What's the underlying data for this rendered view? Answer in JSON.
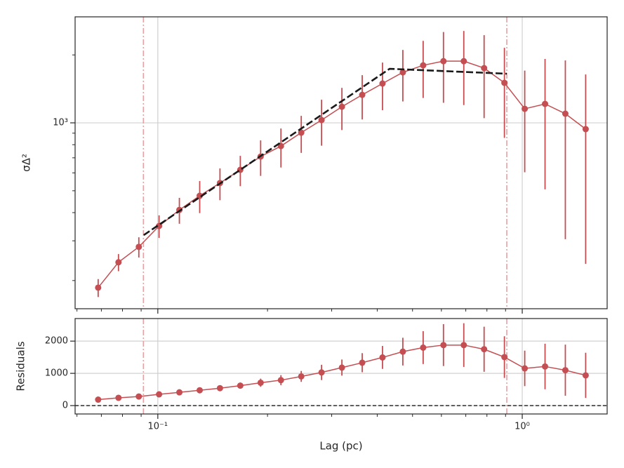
{
  "chart_data": [
    {
      "type": "line",
      "ylabel": "σΔ²",
      "xscale": "log",
      "yscale": "log",
      "grid": true,
      "x": [
        0.0686,
        0.078,
        0.0887,
        0.1008,
        0.1146,
        0.1303,
        0.1481,
        0.1684,
        0.1915,
        0.2177,
        0.2475,
        0.2814,
        0.32,
        0.3638,
        0.4136,
        0.4703,
        0.5347,
        0.6079,
        0.6912,
        0.7859,
        0.8935,
        1.0159,
        1.155,
        1.313,
        1.493
      ],
      "series": [
        {
          "color": "#c44e52",
          "values": [
            186,
            241,
            282,
            349,
            411,
            475,
            541,
            619,
            709,
            789,
            905,
            1029,
            1179,
            1331,
            1494,
            1674,
            1799,
            1877,
            1877,
            1748,
            1504,
            1154,
            1213,
            1098,
            938
          ],
          "errors": [
            17,
            21,
            29,
            40,
            54,
            77,
            87,
            95,
            127,
            155,
            169,
            237,
            250,
            296,
            356,
            430,
            510,
            650,
            678,
            699,
            646,
            550,
            706,
            793,
            701
          ]
        }
      ],
      "fit": {
        "color": "#1a1a1a",
        "x": [
          0.0915,
          0.4325,
          0.907
        ],
        "values": [
          318,
          1736,
          1651
        ]
      },
      "vlines": [
        0.0913,
        0.907
      ],
      "vline_color": "#e8a0a4",
      "xlim": [
        0.0593,
        1.71
      ],
      "ylim": [
        150,
        2950
      ],
      "xticks": [
        0.1,
        1
      ],
      "xminor": [
        0.06,
        0.07,
        0.08,
        0.09,
        0.2,
        0.3,
        0.4,
        0.5,
        0.6,
        0.7,
        0.8,
        0.9
      ],
      "yticks": [
        {
          "value": 1000,
          "label": "10³"
        }
      ],
      "yminor": [
        200,
        300,
        400,
        500,
        600,
        700,
        800,
        900,
        2000
      ]
    },
    {
      "type": "line",
      "xlabel": "Lag (pc)",
      "ylabel": "Residuals",
      "xscale": "log",
      "grid": true,
      "x": [
        0.0686,
        0.078,
        0.0887,
        0.1008,
        0.1146,
        0.1303,
        0.1481,
        0.1684,
        0.1915,
        0.2177,
        0.2475,
        0.2814,
        0.32,
        0.3638,
        0.4136,
        0.4703,
        0.5347,
        0.6079,
        0.6912,
        0.7859,
        0.8935,
        1.0159,
        1.155,
        1.313,
        1.493
      ],
      "series": [
        {
          "color": "#c44e52",
          "values": [
            186,
            241,
            282,
            349,
            411,
            475,
            541,
            619,
            709,
            789,
            905,
            1029,
            1179,
            1331,
            1494,
            1674,
            1799,
            1877,
            1877,
            1748,
            1504,
            1154,
            1213,
            1098,
            938
          ],
          "errors": [
            17,
            21,
            29,
            40,
            54,
            77,
            87,
            95,
            127,
            155,
            169,
            237,
            250,
            296,
            356,
            430,
            510,
            650,
            678,
            699,
            646,
            550,
            706,
            793,
            701
          ]
        }
      ],
      "hline": 0,
      "vlines": [
        0.0913,
        0.907
      ],
      "vline_color": "#e8a0a4",
      "xlim": [
        0.0593,
        1.71
      ],
      "ylim": [
        -260,
        2700
      ],
      "xticks": [
        {
          "value": 0.1,
          "label": "10⁻¹"
        },
        {
          "value": 1,
          "label": "10⁰"
        }
      ],
      "xminor": [
        0.06,
        0.07,
        0.08,
        0.09,
        0.2,
        0.3,
        0.4,
        0.5,
        0.6,
        0.7,
        0.8,
        0.9
      ],
      "yticks": [
        0,
        1000,
        2000
      ]
    }
  ]
}
